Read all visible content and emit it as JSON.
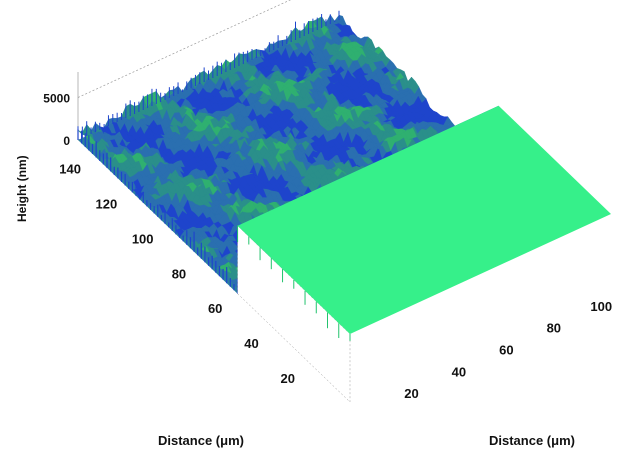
{
  "chart_data": {
    "type": "surface3d",
    "title": "",
    "xlabel": "Distance (μm)",
    "ylabel": "Distance (μm)",
    "zlabel": "Height (nm)",
    "x_ticks": [
      20,
      40,
      60,
      80,
      100,
      120,
      140
    ],
    "y_ticks": [
      20,
      40,
      60,
      80,
      100
    ],
    "z_ticks": [
      0,
      5000
    ],
    "xlim": [
      0,
      150
    ],
    "ylim": [
      0,
      110
    ],
    "zlim": [
      0,
      8000
    ],
    "regions": [
      {
        "name": "plateau",
        "x_range": [
          0,
          62
        ],
        "height": 8000,
        "color": "#33ee88"
      },
      {
        "name": "rough",
        "x_range": [
          62,
          150
        ],
        "height_range": [
          0,
          1500
        ],
        "colors": [
          "#1e44cc",
          "#2a6fb0",
          "#2a8f8a",
          "#2fb070"
        ]
      }
    ]
  },
  "colors": {
    "plateau_top": "#36f08a",
    "plateau_edge": "#22c26c",
    "low": "#1f3fd0",
    "mid": "#2a7fa0",
    "high": "#30b878",
    "grid": "#999999"
  }
}
